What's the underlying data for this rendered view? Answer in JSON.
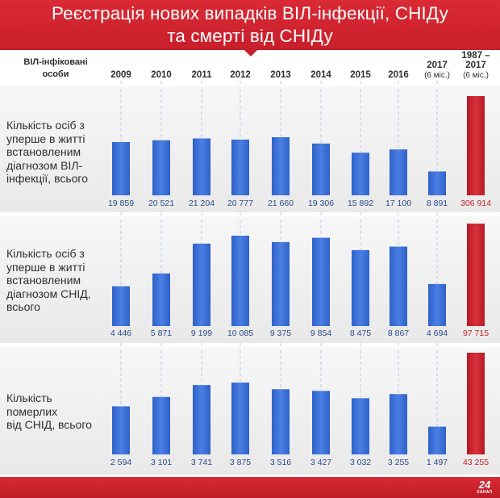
{
  "title": {
    "line1": "Реєстрація нових випадків ВІЛ-інфекції, СНІДу",
    "line2": "та смерті від СНІДу"
  },
  "corner_label": {
    "line1": "ВІЛ-інфіковані",
    "line2": "особи"
  },
  "colors": {
    "accent": "#c81f2b",
    "bar_blue": "#3a6fd8",
    "bar_red": "#c81f2b",
    "value_text": "#2b4a8a"
  },
  "chart_data": {
    "type": "bar",
    "title": "Реєстрація нових випадків ВІЛ-інфекції, СНІДу та смерті від СНІДу",
    "categories": [
      {
        "label": "2009"
      },
      {
        "label": "2010"
      },
      {
        "label": "2011"
      },
      {
        "label": "2012"
      },
      {
        "label": "2013"
      },
      {
        "label": "2014"
      },
      {
        "label": "2015"
      },
      {
        "label": "2016"
      },
      {
        "label": "2017",
        "sub": "(6 міс.)"
      },
      {
        "label": "1987 –",
        "label2": "2017",
        "sub": "(6 міс.)",
        "highlight": true
      }
    ],
    "series": [
      {
        "name": "Кількість осіб з уперше в житті встановленим діагнозом ВІЛ-інфекції, всього",
        "label_lines": [
          "Кількість осіб з",
          "уперше в житті",
          "встановленим",
          "діагнозом ВІЛ-",
          "інфекції, всього"
        ],
        "values": [
          19859,
          20521,
          21204,
          20777,
          21660,
          19306,
          15892,
          17100,
          8891,
          306914
        ],
        "display": [
          "19 859",
          "20 521",
          "21 204",
          "20 777",
          "21 660",
          "19 306",
          "15 892",
          "17 100",
          "8 891",
          "306 914"
        ]
      },
      {
        "name": "Кількість осіб з уперше в житті встановленим діагнозом СНІД, всього",
        "label_lines": [
          "Кількість осіб з",
          "уперше в житті",
          "встановленим",
          "діагнозом СНІД,",
          "всього"
        ],
        "values": [
          4446,
          5871,
          9199,
          10085,
          9375,
          9854,
          8475,
          8867,
          4694,
          97715
        ],
        "display": [
          "4 446",
          "5 871",
          "9 199",
          "10 085",
          "9 375",
          "9 854",
          "8 475",
          "8 867",
          "4 694",
          "97 715"
        ]
      },
      {
        "name": "Кількість померлих від СНІД, всього",
        "label_lines": [
          "Кількість померлих",
          "від СНІД, всього"
        ],
        "values": [
          2594,
          3101,
          3741,
          3875,
          3516,
          3427,
          3032,
          3255,
          1497,
          43255
        ],
        "display": [
          "2 594",
          "3 101",
          "3 741",
          "3 875",
          "3 516",
          "3 427",
          "3 032",
          "3 255",
          "1 497",
          "43 255"
        ]
      }
    ],
    "xlabel": "",
    "ylabel": "",
    "grid": false,
    "note": "Cumulative column (1987 – 2017) drawn at a compressed scale"
  },
  "footer": {
    "logo_number": "24",
    "logo_text": "КАНАЛ"
  }
}
